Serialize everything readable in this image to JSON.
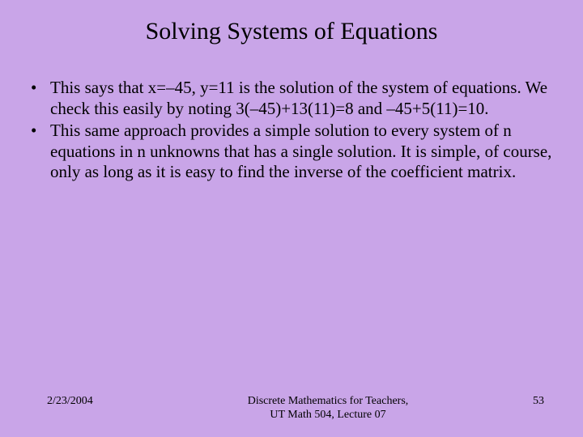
{
  "background_color": "#c9a5e8",
  "text_color": "#000000",
  "font_family": "Times New Roman",
  "title": {
    "text": "Solving Systems of Equations",
    "fontsize": 30
  },
  "bullets": [
    "This says that x=–45, y=11 is the solution of the system of equations. We check this easily by noting 3(–45)+13(11)=8 and –45+5(11)=10.",
    "This same approach provides a simple solution to every system of n equations in n unknowns that has a single solution. It is simple, of course, only as long as it is easy to find the inverse of the coefficient matrix."
  ],
  "bullet_fontsize": 21,
  "footer": {
    "date": "2/23/2004",
    "center_line1": "Discrete Mathematics for Teachers,",
    "center_line2": "UT Math 504, Lecture 07",
    "page": "53",
    "fontsize": 14
  }
}
